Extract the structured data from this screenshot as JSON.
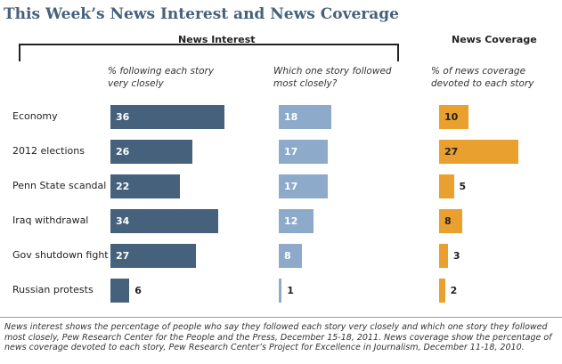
{
  "title": "This Week’s News Interest and News Coverage",
  "headers": {
    "news_interest": "News Interest",
    "news_coverage": "News Coverage"
  },
  "subheaders": {
    "following_line1": "% following each story",
    "following_line2": "very closely",
    "which_line1": "Which one story followed",
    "which_line2": "most closely?",
    "coverage_line1": "% of news coverage",
    "coverage_line2": "devoted to each story"
  },
  "colors": {
    "interest": "#45617b",
    "closely": "#8eaacb",
    "coverage": "#e9a02e",
    "title": "#45617b"
  },
  "chart_data": {
    "type": "bar",
    "title": "This Week’s News Interest and News Coverage",
    "categories": [
      "Economy",
      "2012 elections",
      "Penn State scandal",
      "Iraq withdrawal",
      "Gov shutdown fight",
      "Russian protests"
    ],
    "series": [
      {
        "name": "% following each story very closely",
        "values": [
          36,
          26,
          22,
          34,
          27,
          6
        ]
      },
      {
        "name": "Which one story followed most closely?",
        "values": [
          18,
          17,
          17,
          12,
          8,
          1
        ]
      },
      {
        "name": "% of news coverage devoted to each story",
        "values": [
          10,
          27,
          5,
          8,
          3,
          2
        ]
      }
    ],
    "xlabel": "",
    "ylabel": ""
  },
  "footnote": {
    "line1": "News interest shows the percentage of people who say they followed each story very closely and which one story they followed",
    "line2": "most closely, Pew Research Center for the People and the Press, December 15-18, 2011.  News coverage show the percentage of",
    "line3": "news coverage devoted to each story, Pew Research Center’s Project for Excellence in Journalism, December 11-18, 2010."
  }
}
